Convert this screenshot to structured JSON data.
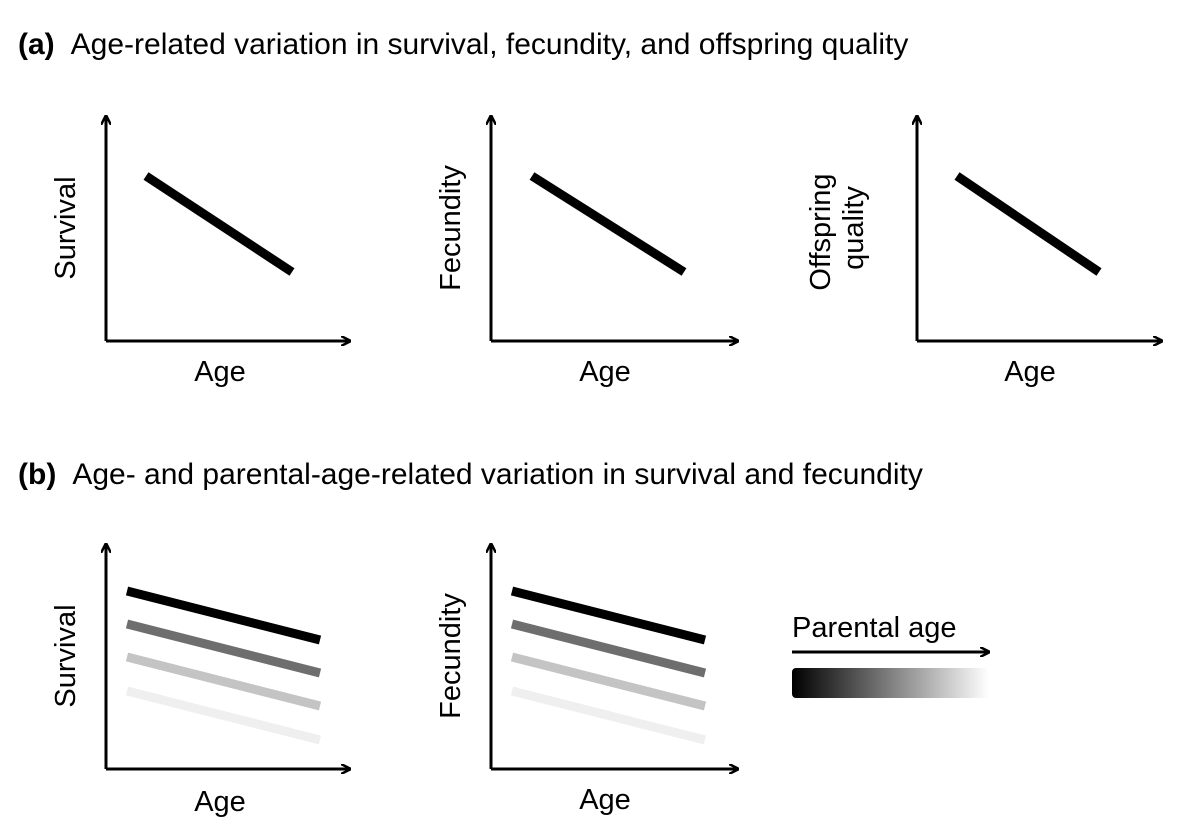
{
  "panel_a": {
    "tag": "(a)",
    "title": "Age-related variation in survival, fecundity, and offspring quality",
    "plots": [
      {
        "ylabel_lines": [
          "Survival"
        ],
        "xlabel": "Age"
      },
      {
        "ylabel_lines": [
          "Fecundity"
        ],
        "xlabel": "Age"
      },
      {
        "ylabel_lines": [
          "Offspring",
          "quality"
        ],
        "xlabel": "Age"
      }
    ]
  },
  "panel_b": {
    "tag": "(b)",
    "title": "Age- and parental-age-related variation in survival and fecundity",
    "plots": [
      {
        "ylabel_lines": [
          "Survival"
        ],
        "xlabel": "Age"
      },
      {
        "ylabel_lines": [
          "Fecundity"
        ],
        "xlabel": "Age"
      }
    ],
    "legend": {
      "label": "Parental age",
      "gradient_from": "#000000",
      "gradient_to": "#ffffff"
    },
    "line_colors": [
      "#000000",
      "#6e6e6e",
      "#c4c4c4",
      "#efefef"
    ]
  }
}
